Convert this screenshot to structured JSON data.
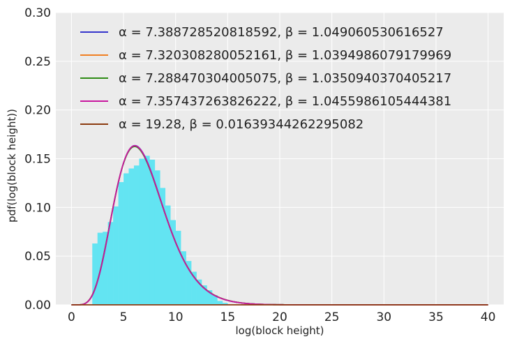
{
  "chart_data": {
    "type": "line",
    "title": "",
    "xlabel": "log(block height)",
    "ylabel": "pdf(log(block height))",
    "xlim": [
      -1.5,
      41.5
    ],
    "ylim": [
      0,
      0.3
    ],
    "xticks": [
      0,
      5,
      10,
      15,
      20,
      25,
      30,
      35,
      40
    ],
    "yticks": [
      0.0,
      0.05,
      0.1,
      0.15,
      0.2,
      0.25,
      0.3
    ],
    "xtick_labels": [
      "0",
      "5",
      "10",
      "15",
      "20",
      "25",
      "30",
      "35",
      "40"
    ],
    "ytick_labels": [
      "0.00",
      "0.05",
      "0.10",
      "0.15",
      "0.20",
      "0.25",
      "0.30"
    ],
    "grid": true,
    "background": "#ebebeb",
    "legend_position": "top",
    "histogram": {
      "color": "#63e4f2",
      "bin_width": 0.5,
      "bins": [
        {
          "x": 2.25,
          "h": 0.063
        },
        {
          "x": 2.75,
          "h": 0.074
        },
        {
          "x": 3.25,
          "h": 0.075
        },
        {
          "x": 3.75,
          "h": 0.085
        },
        {
          "x": 4.25,
          "h": 0.101
        },
        {
          "x": 4.75,
          "h": 0.126
        },
        {
          "x": 5.25,
          "h": 0.135
        },
        {
          "x": 5.75,
          "h": 0.14
        },
        {
          "x": 6.25,
          "h": 0.143
        },
        {
          "x": 6.75,
          "h": 0.15
        },
        {
          "x": 7.25,
          "h": 0.153
        },
        {
          "x": 7.75,
          "h": 0.149
        },
        {
          "x": 8.25,
          "h": 0.138
        },
        {
          "x": 8.75,
          "h": 0.12
        },
        {
          "x": 9.25,
          "h": 0.102
        },
        {
          "x": 9.75,
          "h": 0.087
        },
        {
          "x": 10.25,
          "h": 0.076
        },
        {
          "x": 10.75,
          "h": 0.055
        },
        {
          "x": 11.25,
          "h": 0.045
        },
        {
          "x": 11.75,
          "h": 0.034
        },
        {
          "x": 12.25,
          "h": 0.026
        },
        {
          "x": 12.75,
          "h": 0.02
        },
        {
          "x": 13.25,
          "h": 0.015
        },
        {
          "x": 13.75,
          "h": 0.01
        },
        {
          "x": 14.25,
          "h": 0.004
        },
        {
          "x": 14.75,
          "h": 0.002
        }
      ]
    },
    "series": [
      {
        "name": "α = 7.388728520818592, β = 1.049060530616527",
        "color": "#3535cc",
        "alpha": 7.388728520818592,
        "beta": 1.049060530616527
      },
      {
        "name": "α = 7.320308280052161, β = 1.0394986079179969",
        "color": "#f07f22",
        "alpha": 7.320308280052161,
        "beta": 1.0394986079179969
      },
      {
        "name": "α = 7.288470304005075, β = 1.0350940370405217",
        "color": "#2e8b15",
        "alpha": 7.288470304005075,
        "beta": 1.0350940370405217
      },
      {
        "name": "α = 7.357437263826222, β = 1.0455986105444381",
        "color": "#c8179e",
        "alpha": 7.357437263826222,
        "beta": 1.0455986105444381
      },
      {
        "name": "α = 19.28, β = 0.01639344262295082",
        "color": "#8b3a0f",
        "alpha": 19.28,
        "beta": 0.01639344262295082
      }
    ]
  }
}
